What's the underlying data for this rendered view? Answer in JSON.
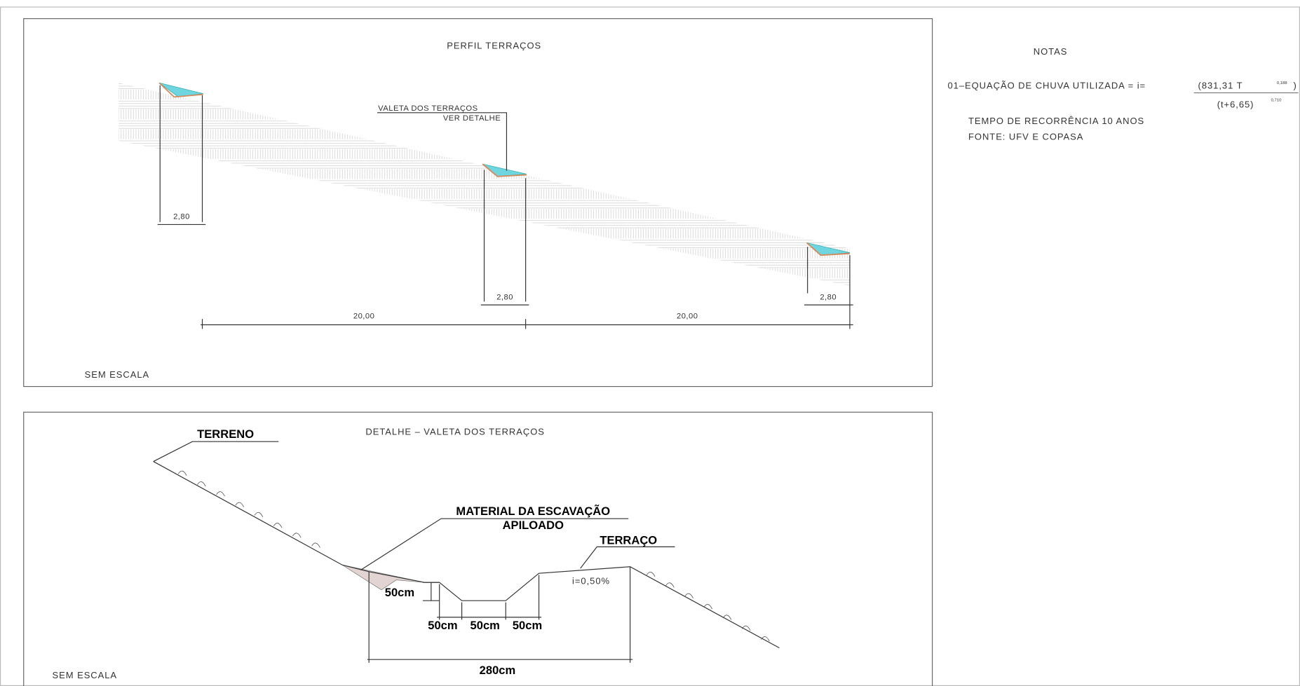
{
  "profile": {
    "title": "PERFIL TERRAÇOS",
    "callout": [
      "VALETA DOS TERRAÇOS",
      "VER DETALHE"
    ],
    "dimensions": [
      "2,80",
      "2,80",
      "2,80",
      "20,00",
      "20,00"
    ],
    "scale": "SEM ESCALA"
  },
  "notes": {
    "title": "NOTAS",
    "item": "01–EQUAÇÃO DE CHUVA UTILIZADA = i=",
    "numerator": "(831,31 T",
    "numerator_exponent": "0,188",
    "close": ")",
    "denominator": "(t+6,65)",
    "denominator_exponent": "0,710",
    "lines": [
      "TEMPO DE RECORRÊNCIA 10 ANOS",
      "FONTE: UFV E COPASA"
    ]
  },
  "detail": {
    "title": "DETALHE – VALETA DOS TERRAÇOS",
    "terrain": "TERRENO",
    "material": [
      "MATERIAL DA ESCAVAÇÃO",
      "APILOADO"
    ],
    "terrace": "TERRAÇO",
    "slope": "i=0,50%",
    "height": "50cm",
    "widths": [
      "50cm",
      "50cm",
      "50cm"
    ],
    "total": "280cm",
    "scale": "SEM ESCALA"
  }
}
